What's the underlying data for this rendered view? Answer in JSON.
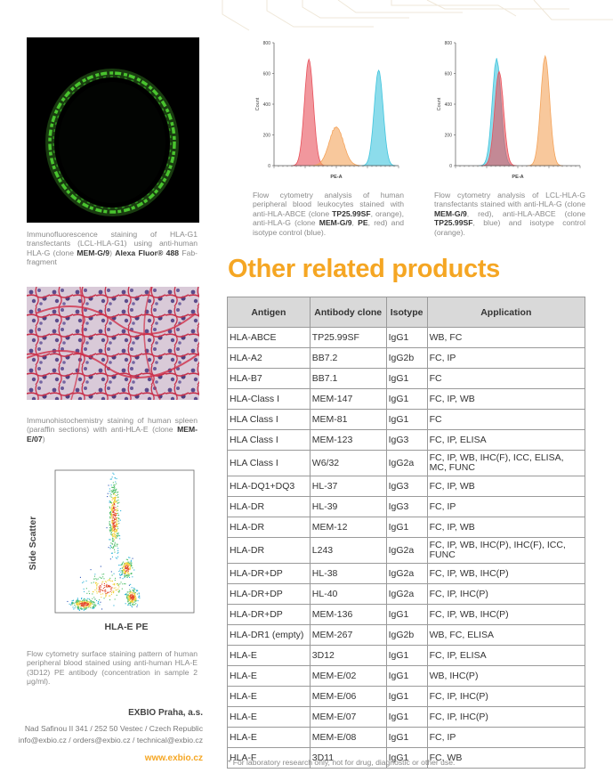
{
  "colors": {
    "accent": "#f5a623",
    "histo_red": "#e8515b",
    "histo_orange": "#f4a35a",
    "histo_blue": "#3fc4dd",
    "table_header": "#d9d9d9"
  },
  "captions": {
    "if": {
      "text1": "Immunofluorescence staining of HLA-G1 transfectants (LCL-HLA-G1) using anti-human HLA-G (clone ",
      "b1": "MEM-G/9",
      "text2": ") ",
      "b2": "Alexa Fluor® 488",
      "text3": " Fab-fragment"
    },
    "ihc": {
      "text1": "Immunohistochemistry staining of human spleen (paraffin sections) with anti-HLA-E (clone ",
      "b1": "MEM-E/07",
      "text2": ")"
    },
    "fc_scatter": {
      "text": "Flow cytometry surface staining pattern of human peripheral blood stained using anti-human HLA-E (3D12) PE antibody (concentration in sample 2 μg/ml)."
    },
    "fc1": {
      "text1": "Flow cytometry analysis of human peripheral blood leukocytes stained with anti-HLA-ABCE (clone ",
      "b1": "TP25.99SF",
      "text2": ", orange), anti-HLA-G (clone ",
      "b2": "MEM-G/9",
      "text3": ", ",
      "b3": "PE",
      "text4": ", red) and isotype control (blue)."
    },
    "fc2": {
      "text1": "Flow cytometry analysis of LCL-HLA-G transfectants stained with anti-HLA-G (clone ",
      "b1": "MEM-G/9",
      "text2": ", red), anti-HLA-ABCE (clone ",
      "b2": "TP25.99SF",
      "text3": ", blue) and isotype control (orange)."
    }
  },
  "chart_data": [
    {
      "type": "area",
      "xlabel": "PE-A",
      "ylabel": "Count",
      "yticks": [
        "0",
        "200",
        "400",
        "600",
        "800"
      ],
      "ylim": [
        0,
        800
      ],
      "series": [
        {
          "color": "#e8515b",
          "peak_x": 0.28,
          "peak_y": 700
        },
        {
          "color": "#f4a35a",
          "peak_x": 0.5,
          "peak_y": 260
        },
        {
          "color": "#3fc4dd",
          "peak_x": 0.84,
          "peak_y": 630
        }
      ]
    },
    {
      "type": "area",
      "xlabel": "PE-A",
      "ylabel": "Count",
      "yticks": [
        "0",
        "200",
        "400",
        "600",
        "800"
      ],
      "ylim": [
        0,
        800
      ],
      "series": [
        {
          "color": "#3fc4dd",
          "peak_x": 0.33,
          "peak_y": 700
        },
        {
          "color": "#e8515b",
          "peak_x": 0.35,
          "peak_y": 620
        },
        {
          "color": "#f4a35a",
          "peak_x": 0.72,
          "peak_y": 720
        }
      ]
    },
    {
      "type": "scatter",
      "xlabel": "HLA-E PE",
      "ylabel": "Side Scatter"
    }
  ],
  "heading": "Other related products",
  "table": {
    "headers": [
      "Antigen",
      "Antibody clone",
      "Isotype",
      "Application"
    ],
    "rows": [
      [
        "HLA-ABCE",
        "TP25.99SF",
        "IgG1",
        "WB, FC"
      ],
      [
        "HLA-A2",
        "BB7.2",
        "IgG2b",
        "FC, IP"
      ],
      [
        "HLA-B7",
        "BB7.1",
        "IgG1",
        "FC"
      ],
      [
        "HLA-Class I",
        "MEM-147",
        "IgG1",
        "FC, IP, WB"
      ],
      [
        "HLA Class I",
        "MEM-81",
        "IgG1",
        "FC"
      ],
      [
        "HLA Class I",
        "MEM-123",
        "IgG3",
        "FC, IP, ELISA"
      ],
      [
        "HLA Class I",
        "W6/32",
        "IgG2a",
        "FC, IP, WB, IHC(F), ICC, ELISA, MC, FUNC"
      ],
      [
        "HLA-DQ1+DQ3",
        "HL-37",
        "IgG3",
        "FC, IP, WB"
      ],
      [
        "HLA-DR",
        "HL-39",
        "IgG3",
        "FC, IP"
      ],
      [
        "HLA-DR",
        "MEM-12",
        "IgG1",
        "FC, IP, WB"
      ],
      [
        "HLA-DR",
        "L243",
        "IgG2a",
        "FC, IP, WB, IHC(P), IHC(F), ICC, FUNC"
      ],
      [
        "HLA-DR+DP",
        "HL-38",
        "IgG2a",
        "FC, IP, WB, IHC(P)"
      ],
      [
        "HLA-DR+DP",
        "HL-40",
        "IgG2a",
        "FC, IP, IHC(P)"
      ],
      [
        "HLA-DR+DP",
        "MEM-136",
        "IgG1",
        "FC, IP, WB, IHC(P)"
      ],
      [
        "HLA-DR1 (empty)",
        "MEM-267",
        "IgG2b",
        "WB, FC, ELISA"
      ],
      [
        "HLA-E",
        "3D12",
        "IgG1",
        "FC, IP, ELISA"
      ],
      [
        "HLA-E",
        "MEM-E/02",
        "IgG1",
        "WB, IHC(P)"
      ],
      [
        "HLA-E",
        "MEM-E/06",
        "IgG1",
        "FC, IP, IHC(P)"
      ],
      [
        "HLA-E",
        "MEM-E/07",
        "IgG1",
        "FC, IP, IHC(P)"
      ],
      [
        "HLA-E",
        "MEM-E/08",
        "IgG1",
        "FC, IP"
      ],
      [
        "HLA-F",
        "3D11",
        "IgG1",
        "FC, WB"
      ]
    ]
  },
  "footer": {
    "company": "EXBIO Praha, a.s.",
    "address1": "Nad Safinou II 341 / 252 50 Vestec / Czech Republic",
    "address2": "info@exbio.cz / orders@exbio.cz / technical@exbio.cz",
    "web": "www.exbio.cz",
    "disclaimer": "* For laboratory research only, not for drug, diagnostic or other use."
  }
}
